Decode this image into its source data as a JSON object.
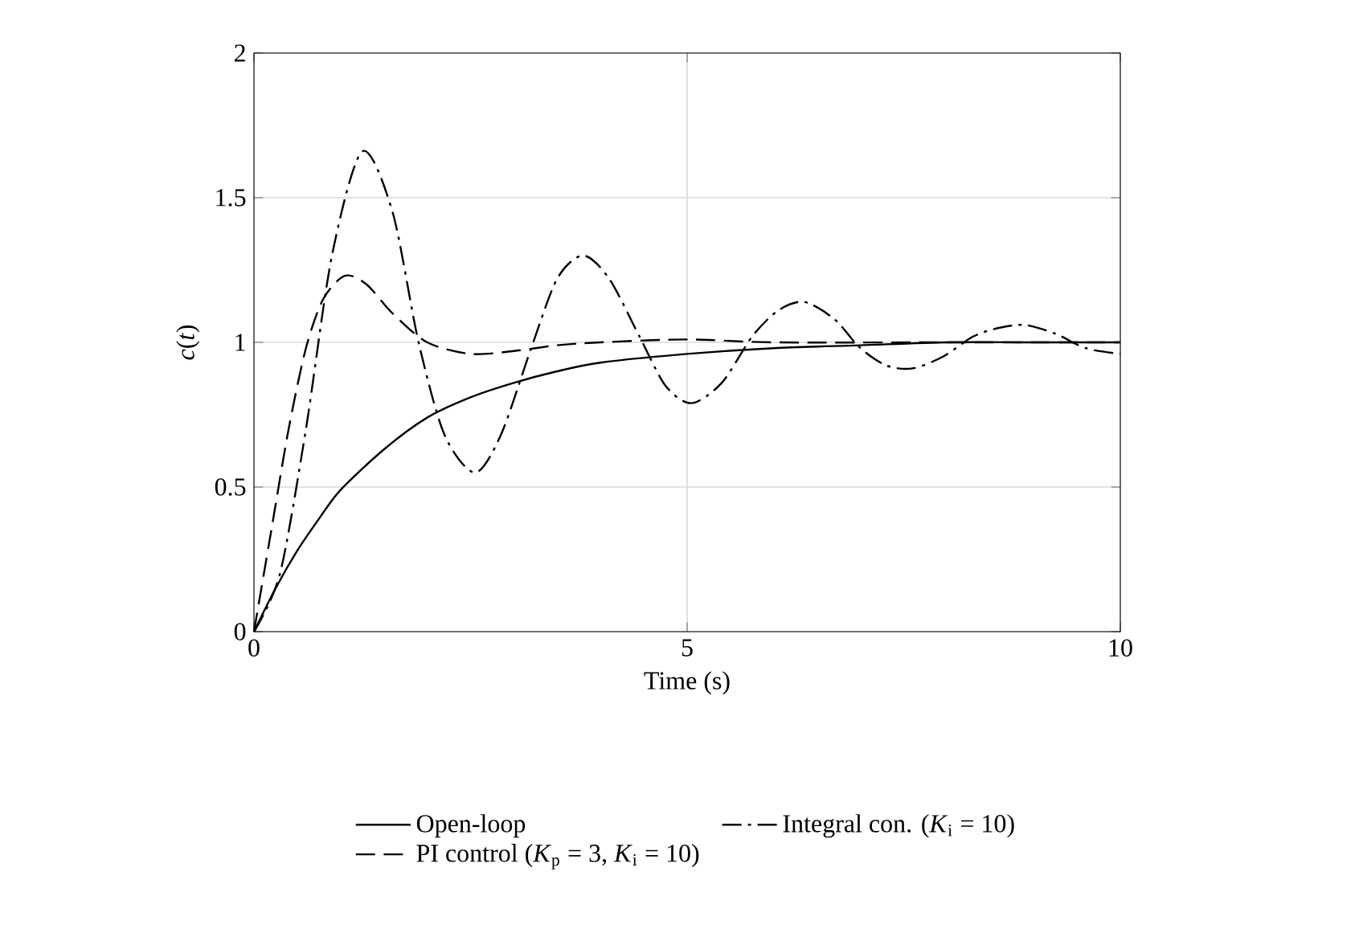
{
  "chart_data": {
    "type": "line",
    "xlabel": "Time (s)",
    "ylabel": "*c*(*t*)",
    "xlim": [
      0,
      10
    ],
    "ylim": [
      0,
      2
    ],
    "xticks": [
      0,
      5,
      10
    ],
    "yticks": [
      0,
      0.5,
      1,
      1.5,
      2
    ],
    "grid": true,
    "legend": "bottom",
    "series": [
      {
        "name": "Open-loop",
        "color": "#000000",
        "line_style": "solid",
        "x": [
          0,
          0.25,
          0.5,
          0.75,
          1,
          1.5,
          2,
          2.5,
          3,
          3.5,
          4,
          5,
          6,
          7,
          8,
          9,
          10
        ],
        "values": [
          0,
          0.15,
          0.28,
          0.39,
          0.49,
          0.63,
          0.74,
          0.81,
          0.86,
          0.9,
          0.93,
          0.96,
          0.98,
          0.99,
          1.0,
          1.0,
          1.0
        ]
      },
      {
        "name": "Integral con. (*K*$_{i}$ = 10)",
        "color": "#000000",
        "line_style": "dashdot",
        "x": [
          0,
          0.3,
          0.6,
          0.9,
          1.25,
          1.6,
          1.9,
          2.2,
          2.55,
          2.85,
          3.2,
          3.5,
          3.8,
          4.1,
          4.45,
          4.75,
          5.05,
          5.4,
          5.75,
          6.05,
          6.35,
          6.7,
          7.0,
          7.3,
          7.6,
          7.95,
          8.3,
          8.6,
          8.9,
          9.25,
          9.6,
          10
        ],
        "values": [
          0,
          0.2,
          0.7,
          1.3,
          1.66,
          1.45,
          1.0,
          0.68,
          0.55,
          0.68,
          0.98,
          1.22,
          1.3,
          1.22,
          1.02,
          0.85,
          0.79,
          0.86,
          1.02,
          1.11,
          1.14,
          1.08,
          0.98,
          0.92,
          0.91,
          0.95,
          1.02,
          1.05,
          1.06,
          1.03,
          0.98,
          0.96
        ]
      },
      {
        "name": "PI control (*K*$_{p}$ = 3, *K*$_{i}$ = 10)",
        "color": "#000000",
        "line_style": "dashed",
        "x": [
          0,
          0.2,
          0.4,
          0.6,
          0.8,
          1.05,
          1.3,
          1.6,
          2.0,
          2.5,
          3.0,
          3.5,
          4,
          5,
          6,
          8,
          10
        ],
        "values": [
          0,
          0.35,
          0.7,
          0.98,
          1.15,
          1.23,
          1.2,
          1.1,
          1.0,
          0.96,
          0.97,
          0.99,
          1.0,
          1.01,
          1.0,
          1.0,
          1.0
        ]
      }
    ]
  }
}
